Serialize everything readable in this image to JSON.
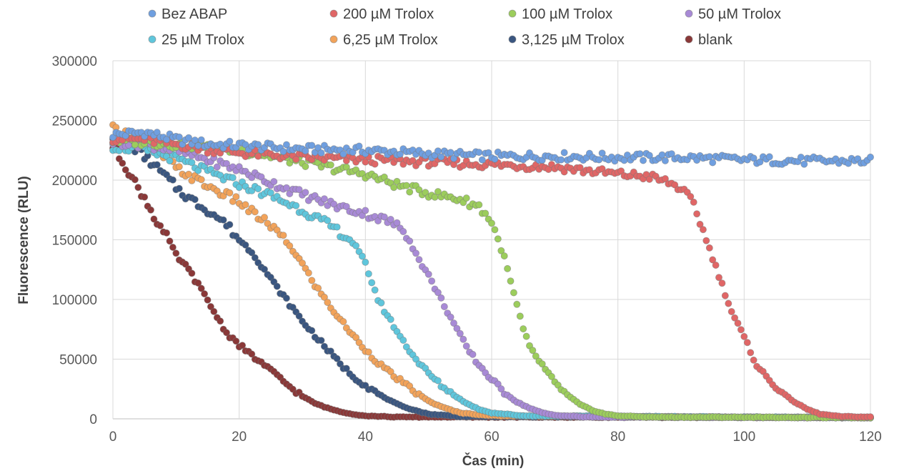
{
  "chart_data": {
    "type": "scatter",
    "xlabel": "Čas (min)",
    "ylabel": "Fluorescence (RLU)",
    "xlim": [
      0,
      120
    ],
    "ylim": [
      0,
      300000
    ],
    "x_ticks": [
      "0",
      "20",
      "40",
      "60",
      "80",
      "100",
      "120"
    ],
    "y_ticks": [
      "0",
      "50000",
      "100000",
      "150000",
      "200000",
      "250000",
      "300000"
    ],
    "grid": true,
    "legend_position": "top",
    "sample_interval_min": 0.5,
    "series": [
      {
        "name": "Bez ABAP",
        "color": "#6f9fe0",
        "points": [
          [
            0,
            238000
          ],
          [
            5,
            240000
          ],
          [
            10,
            234000
          ],
          [
            15,
            230000
          ],
          [
            20,
            229000
          ],
          [
            30,
            226000
          ],
          [
            40,
            225000
          ],
          [
            50,
            222000
          ],
          [
            60,
            220000
          ],
          [
            70,
            220000
          ],
          [
            80,
            219000
          ],
          [
            90,
            219000
          ],
          [
            100,
            217000
          ],
          [
            110,
            216000
          ],
          [
            120,
            216000
          ]
        ]
      },
      {
        "name": "200 µM Trolox",
        "color": "#e06666",
        "points": [
          [
            0,
            235000
          ],
          [
            5,
            234000
          ],
          [
            10,
            230000
          ],
          [
            15,
            226000
          ],
          [
            20,
            223000
          ],
          [
            30,
            219000
          ],
          [
            40,
            217000
          ],
          [
            50,
            215000
          ],
          [
            60,
            213000
          ],
          [
            70,
            211000
          ],
          [
            80,
            205000
          ],
          [
            85,
            203000
          ],
          [
            88,
            198000
          ],
          [
            90,
            193000
          ],
          [
            92,
            180000
          ],
          [
            94,
            150000
          ],
          [
            96,
            120000
          ],
          [
            98,
            90000
          ],
          [
            100,
            68000
          ],
          [
            102,
            45000
          ],
          [
            104,
            32000
          ],
          [
            106,
            22000
          ],
          [
            108,
            14000
          ],
          [
            110,
            8000
          ],
          [
            112,
            4000
          ],
          [
            115,
            2000
          ],
          [
            120,
            1500
          ]
        ]
      },
      {
        "name": "100 µM Trolox",
        "color": "#9ccd5c",
        "points": [
          [
            0,
            233000
          ],
          [
            5,
            232000
          ],
          [
            10,
            230000
          ],
          [
            15,
            228000
          ],
          [
            20,
            225000
          ],
          [
            25,
            220000
          ],
          [
            30,
            215000
          ],
          [
            35,
            210000
          ],
          [
            40,
            205000
          ],
          [
            45,
            196000
          ],
          [
            50,
            189000
          ],
          [
            55,
            184000
          ],
          [
            58,
            178000
          ],
          [
            60,
            165000
          ],
          [
            61,
            150000
          ],
          [
            62,
            135000
          ],
          [
            63,
            115000
          ],
          [
            64,
            95000
          ],
          [
            65,
            75000
          ],
          [
            66,
            60000
          ],
          [
            68,
            45000
          ],
          [
            70,
            30000
          ],
          [
            72,
            20000
          ],
          [
            74,
            12000
          ],
          [
            76,
            7000
          ],
          [
            78,
            4000
          ],
          [
            80,
            2500
          ],
          [
            85,
            1500
          ],
          [
            120,
            1000
          ]
        ]
      },
      {
        "name": "50 µM Trolox",
        "color": "#a88ad6",
        "points": [
          [
            0,
            232000
          ],
          [
            5,
            230000
          ],
          [
            10,
            225000
          ],
          [
            15,
            217000
          ],
          [
            20,
            209000
          ],
          [
            25,
            198000
          ],
          [
            30,
            188000
          ],
          [
            35,
            179000
          ],
          [
            40,
            172000
          ],
          [
            44,
            165000
          ],
          [
            46,
            158000
          ],
          [
            47,
            150000
          ],
          [
            48,
            138000
          ],
          [
            50,
            120000
          ],
          [
            52,
            100000
          ],
          [
            54,
            80000
          ],
          [
            56,
            60000
          ],
          [
            58,
            45000
          ],
          [
            60,
            33000
          ],
          [
            62,
            22000
          ],
          [
            64,
            14000
          ],
          [
            66,
            9000
          ],
          [
            68,
            5000
          ],
          [
            70,
            3000
          ],
          [
            75,
            1500
          ],
          [
            120,
            1000
          ]
        ]
      },
      {
        "name": "25 µM Trolox",
        "color": "#5fc6dc",
        "points": [
          [
            0,
            228000
          ],
          [
            5,
            225000
          ],
          [
            10,
            218000
          ],
          [
            15,
            207000
          ],
          [
            20,
            197000
          ],
          [
            25,
            187000
          ],
          [
            30,
            175000
          ],
          [
            35,
            160000
          ],
          [
            38,
            148000
          ],
          [
            40,
            130000
          ],
          [
            41,
            115000
          ],
          [
            42,
            100000
          ],
          [
            44,
            82000
          ],
          [
            46,
            65000
          ],
          [
            48,
            50000
          ],
          [
            50,
            38000
          ],
          [
            52,
            28000
          ],
          [
            54,
            20000
          ],
          [
            56,
            13000
          ],
          [
            58,
            8000
          ],
          [
            60,
            5000
          ],
          [
            65,
            2500
          ],
          [
            120,
            1000
          ]
        ]
      },
      {
        "name": "6,25 µM Trolox",
        "color": "#f2a35a",
        "points": [
          [
            0,
            243000
          ],
          [
            3,
            237000
          ],
          [
            5,
            232000
          ],
          [
            8,
            220000
          ],
          [
            10,
            210000
          ],
          [
            15,
            195000
          ],
          [
            20,
            182000
          ],
          [
            22,
            173000
          ],
          [
            25,
            162000
          ],
          [
            28,
            145000
          ],
          [
            30,
            130000
          ],
          [
            32,
            112000
          ],
          [
            35,
            90000
          ],
          [
            38,
            70000
          ],
          [
            40,
            58000
          ],
          [
            42,
            47000
          ],
          [
            44,
            38000
          ],
          [
            46,
            30000
          ],
          [
            48,
            22000
          ],
          [
            50,
            15000
          ],
          [
            52,
            10000
          ],
          [
            55,
            5000
          ],
          [
            60,
            2500
          ],
          [
            120,
            1000
          ]
        ]
      },
      {
        "name": "3,125 µM Trolox",
        "color": "#3a5680",
        "points": [
          [
            0,
            237000
          ],
          [
            2,
            232000
          ],
          [
            4,
            225000
          ],
          [
            6,
            215000
          ],
          [
            8,
            205000
          ],
          [
            10,
            194000
          ],
          [
            12,
            185000
          ],
          [
            15,
            175000
          ],
          [
            18,
            163000
          ],
          [
            20,
            150000
          ],
          [
            22,
            140000
          ],
          [
            24,
            125000
          ],
          [
            26,
            110000
          ],
          [
            28,
            96000
          ],
          [
            30,
            82000
          ],
          [
            32,
            70000
          ],
          [
            34,
            58000
          ],
          [
            36,
            46000
          ],
          [
            38,
            36000
          ],
          [
            40,
            28000
          ],
          [
            42,
            21000
          ],
          [
            44,
            15000
          ],
          [
            46,
            10000
          ],
          [
            48,
            7000
          ],
          [
            50,
            4000
          ],
          [
            55,
            2000
          ],
          [
            120,
            1000
          ]
        ]
      },
      {
        "name": "blank",
        "color": "#8a3838",
        "points": [
          [
            0,
            228000
          ],
          [
            1,
            220000
          ],
          [
            2,
            212000
          ],
          [
            3,
            202000
          ],
          [
            5,
            185000
          ],
          [
            7,
            165000
          ],
          [
            9,
            148000
          ],
          [
            10,
            137000
          ],
          [
            12,
            125000
          ],
          [
            14,
            108000
          ],
          [
            16,
            90000
          ],
          [
            18,
            72000
          ],
          [
            20,
            62000
          ],
          [
            22,
            53000
          ],
          [
            24,
            45000
          ],
          [
            26,
            36000
          ],
          [
            28,
            27000
          ],
          [
            30,
            19000
          ],
          [
            32,
            13000
          ],
          [
            34,
            9000
          ],
          [
            36,
            6000
          ],
          [
            38,
            4000
          ],
          [
            40,
            2500
          ],
          [
            45,
            1500
          ],
          [
            120,
            1000
          ]
        ]
      }
    ]
  }
}
